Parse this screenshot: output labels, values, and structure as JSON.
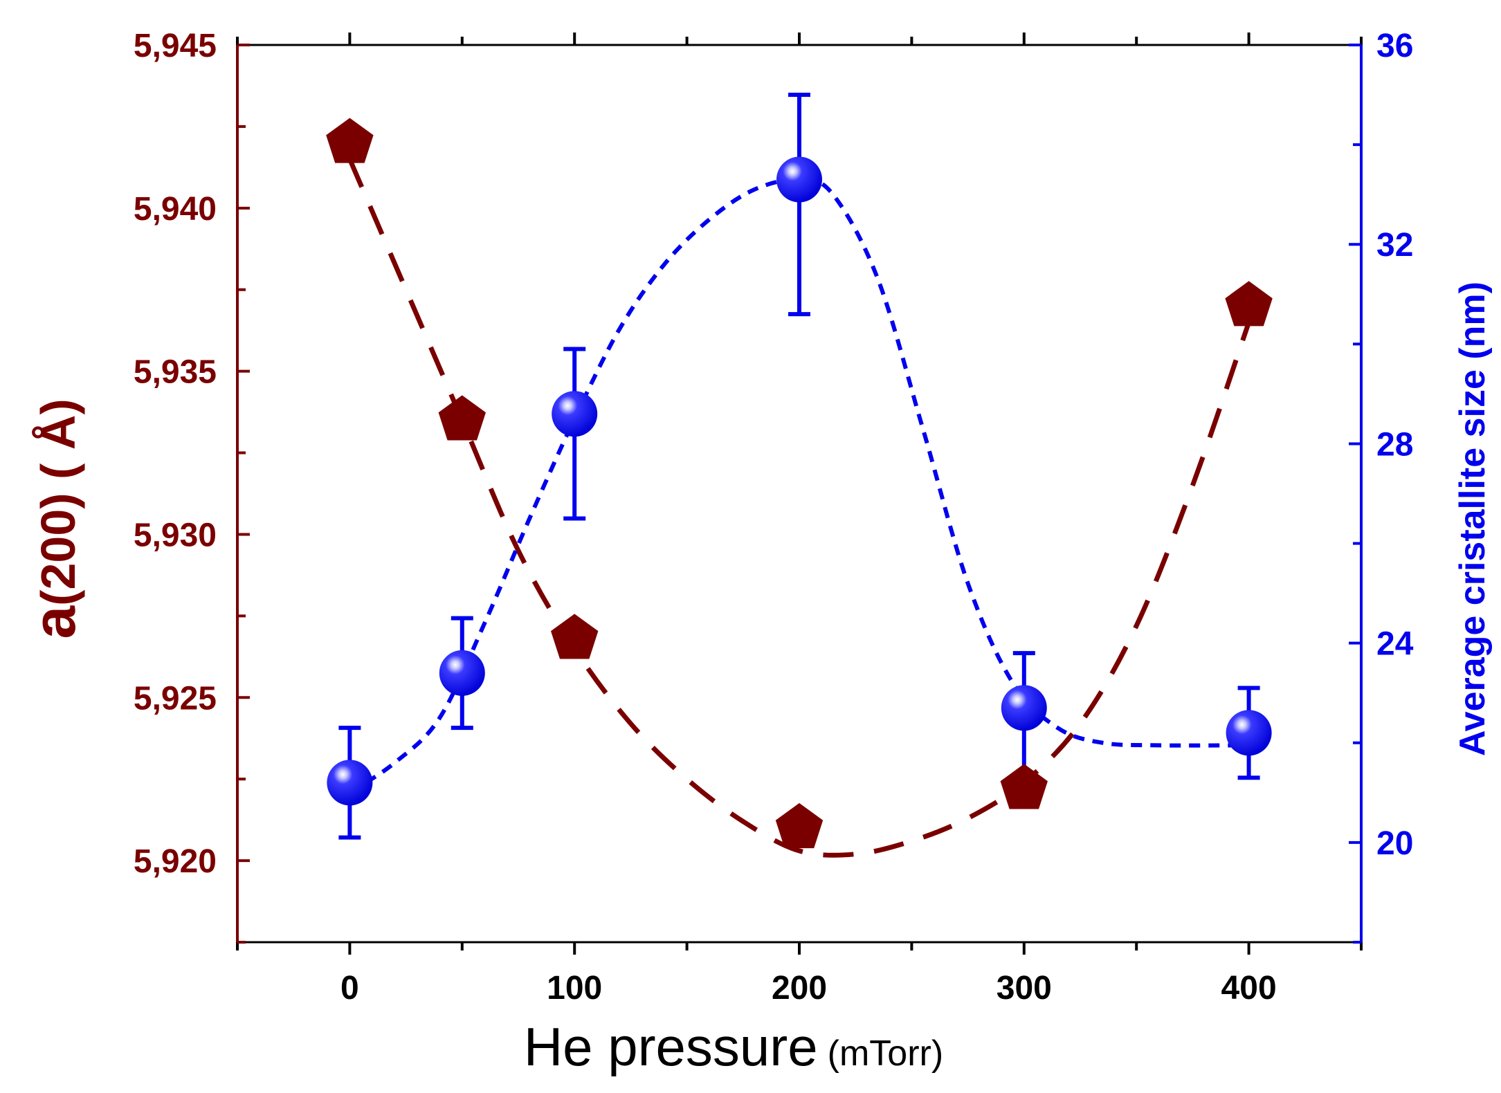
{
  "chart_data": {
    "type": "scatter",
    "title": "",
    "xlabel_main": "He pressure",
    "xlabel_unit": "(mTorr)",
    "ylabel_left_main": "a",
    "ylabel_left_rest": "(200) ( Å)",
    "ylabel_right": "Average cristallite size (nm)",
    "xlim": [
      -50,
      450
    ],
    "ylim_left": [
      5.9175,
      5.945
    ],
    "ylim_right": [
      18,
      36
    ],
    "x_ticks": [
      0,
      100,
      200,
      300,
      400
    ],
    "x_tick_labels": [
      "0",
      "100",
      "200",
      "300",
      "400"
    ],
    "y_left_ticks": [
      5.92,
      5.925,
      5.93,
      5.935,
      5.94,
      5.945
    ],
    "y_left_tick_labels": [
      "5,920",
      "5,925",
      "5,930",
      "5,935",
      "5,940",
      "5,945"
    ],
    "y_right_ticks": [
      20,
      24,
      28,
      32,
      36
    ],
    "y_right_tick_labels": [
      "20",
      "24",
      "28",
      "32",
      "36"
    ],
    "colors": {
      "left": "#7a0000",
      "right": "#0000ee",
      "frame": "#000000"
    },
    "series": [
      {
        "name": "a(200)",
        "axis": "left",
        "marker": "pentagon",
        "x": [
          0,
          50,
          100,
          200,
          300,
          400
        ],
        "y": [
          5.942,
          5.9335,
          5.9268,
          5.921,
          5.9222,
          5.937
        ]
      },
      {
        "name": "Average cristallite size",
        "axis": "right",
        "marker": "sphere",
        "x": [
          0,
          50,
          100,
          200,
          300,
          400
        ],
        "y": [
          21.2,
          23.4,
          28.6,
          33.3,
          22.7,
          22.2
        ],
        "err_lower": [
          1.1,
          1.1,
          2.1,
          2.7,
          1.5,
          0.9
        ],
        "err_upper": [
          1.1,
          1.1,
          1.3,
          1.7,
          1.1,
          0.9
        ]
      }
    ],
    "fit_curves": [
      {
        "name": "a(200) trend",
        "axis": "left",
        "style": "long-dash",
        "points": [
          [
            0,
            5.9415
          ],
          [
            25,
            5.9375
          ],
          [
            50,
            5.9335
          ],
          [
            75,
            5.9295
          ],
          [
            100,
            5.9265
          ],
          [
            125,
            5.9242
          ],
          [
            150,
            5.9225
          ],
          [
            175,
            5.9212
          ],
          [
            200,
            5.9203
          ],
          [
            225,
            5.9202
          ],
          [
            250,
            5.9206
          ],
          [
            275,
            5.9213
          ],
          [
            300,
            5.9224
          ],
          [
            325,
            5.9242
          ],
          [
            350,
            5.9272
          ],
          [
            375,
            5.9315
          ],
          [
            400,
            5.9365
          ]
        ]
      },
      {
        "name": "cristallite size trend",
        "axis": "right",
        "style": "short-dash",
        "points": [
          [
            0,
            21.0
          ],
          [
            20,
            21.6
          ],
          [
            40,
            22.5
          ],
          [
            60,
            24.4
          ],
          [
            80,
            26.5
          ],
          [
            100,
            28.5
          ],
          [
            120,
            30.3
          ],
          [
            140,
            31.6
          ],
          [
            160,
            32.5
          ],
          [
            180,
            33.1
          ],
          [
            200,
            33.3
          ],
          [
            215,
            33.0
          ],
          [
            235,
            31.3
          ],
          [
            255,
            28.3
          ],
          [
            275,
            25.2
          ],
          [
            295,
            23.2
          ],
          [
            315,
            22.3
          ],
          [
            335,
            22.0
          ],
          [
            360,
            21.95
          ],
          [
            400,
            21.95
          ]
        ]
      }
    ]
  }
}
